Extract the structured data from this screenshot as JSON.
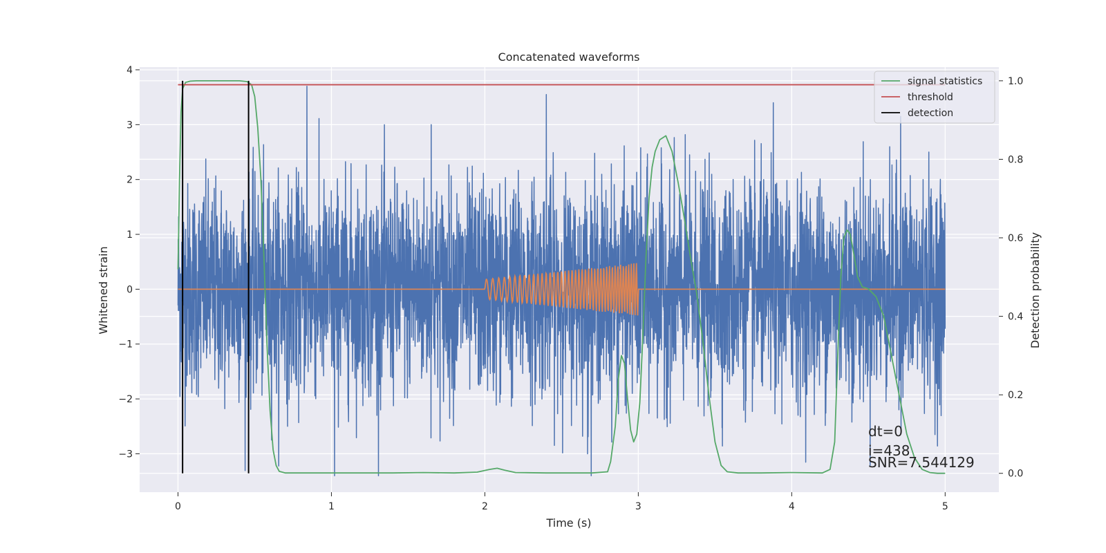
{
  "chart_data": {
    "type": "line",
    "title": "Concatenated waveforms",
    "xlabel": "Time (s)",
    "ylabel": "Whitened strain",
    "ylabel_right": "Detection probability",
    "xlim": [
      -0.25,
      5.35
    ],
    "ylim": [
      -3.7,
      4.05
    ],
    "ylim_right": [
      -0.048,
      1.035
    ],
    "xticks": [
      0,
      1,
      2,
      3,
      4,
      5
    ],
    "yticks": [
      -3,
      -2,
      -1,
      0,
      1,
      2,
      3,
      4
    ],
    "yticks_right": [
      0.0,
      0.2,
      0.4,
      0.6,
      0.8,
      1.0
    ],
    "xtick_labels": [
      "0",
      "1",
      "2",
      "3",
      "4",
      "5"
    ],
    "ytick_labels": [
      "−3",
      "−2",
      "−1",
      "0",
      "1",
      "2",
      "3",
      "4"
    ],
    "ytick_right_labels": [
      "0.0",
      "0.2",
      "0.4",
      "0.6",
      "0.8",
      "1.0"
    ],
    "grid": true,
    "legend_position": "top-right",
    "colors": {
      "background": "#eaeaf2",
      "grid": "#ffffff",
      "strain": "#4c72b0",
      "injection": "#dd8452",
      "statistics": "#55a868",
      "threshold": "#c44e52",
      "detection": "#000000"
    },
    "series": [
      {
        "name": "strain",
        "axis": "left",
        "description_values": "whitened Gaussian noise, x from 0 to 5 s, mostly within ±2.5, peaks near 3.7",
        "x_range": [
          0,
          5
        ],
        "sigma": 1.0,
        "spikes": [
          [
            0.84,
            3.7
          ],
          [
            1.02,
            -3.4
          ],
          [
            2.4,
            3.55
          ],
          [
            3.88,
            3.4
          ],
          [
            4.71,
            3.15
          ],
          [
            1.65,
            3.0
          ],
          [
            2.67,
            -3.0
          ]
        ]
      },
      {
        "name": "injection",
        "axis": "left",
        "chirp_start": 2.0,
        "chirp_end": 3.0,
        "amp_start": 0.18,
        "amp_end": 0.48,
        "cycles": 42,
        "baseline": 0,
        "x_range": [
          0,
          5
        ]
      },
      {
        "name": "signal statistics",
        "axis": "right",
        "x": [
          0.0,
          0.01,
          0.02,
          0.03,
          0.05,
          0.08,
          0.12,
          0.2,
          0.3,
          0.4,
          0.45,
          0.48,
          0.5,
          0.52,
          0.54,
          0.56,
          0.58,
          0.6,
          0.62,
          0.64,
          0.66,
          0.7,
          0.8,
          1.0,
          1.4,
          1.6,
          1.8,
          1.95,
          2.03,
          2.08,
          2.13,
          2.2,
          2.4,
          2.7,
          2.8,
          2.82,
          2.85,
          2.87,
          2.89,
          2.91,
          2.93,
          2.95,
          2.97,
          2.99,
          3.01,
          3.03,
          3.05,
          3.07,
          3.09,
          3.11,
          3.14,
          3.18,
          3.22,
          3.26,
          3.3,
          3.34,
          3.38,
          3.42,
          3.46,
          3.5,
          3.54,
          3.58,
          3.65,
          3.8,
          4.0,
          4.2,
          4.25,
          4.28,
          4.3,
          4.32,
          4.34,
          4.36,
          4.38,
          4.4,
          4.43,
          4.46,
          4.5,
          4.55,
          4.6,
          4.65,
          4.7,
          4.75,
          4.8,
          4.85,
          4.9,
          4.95,
          5.0
        ],
        "y": [
          0.52,
          0.75,
          0.92,
          0.98,
          0.996,
          0.999,
          1.0,
          1.0,
          1.0,
          1.0,
          0.998,
          0.99,
          0.96,
          0.88,
          0.75,
          0.55,
          0.33,
          0.16,
          0.06,
          0.02,
          0.005,
          0.001,
          0.001,
          0.001,
          0.001,
          0.002,
          0.001,
          0.003,
          0.01,
          0.013,
          0.008,
          0.002,
          0.001,
          0.001,
          0.004,
          0.03,
          0.12,
          0.24,
          0.3,
          0.28,
          0.19,
          0.11,
          0.08,
          0.1,
          0.18,
          0.35,
          0.55,
          0.7,
          0.78,
          0.82,
          0.85,
          0.86,
          0.82,
          0.74,
          0.65,
          0.55,
          0.46,
          0.34,
          0.2,
          0.08,
          0.02,
          0.004,
          0.001,
          0.001,
          0.002,
          0.001,
          0.01,
          0.08,
          0.3,
          0.5,
          0.6,
          0.62,
          0.61,
          0.57,
          0.5,
          0.475,
          0.47,
          0.45,
          0.4,
          0.3,
          0.2,
          0.1,
          0.04,
          0.01,
          0.002,
          0.0,
          0.0
        ]
      },
      {
        "name": "threshold",
        "axis": "right",
        "x": [
          0,
          5
        ],
        "y": [
          0.99,
          0.99
        ]
      },
      {
        "name": "detection",
        "axis": "right",
        "x": [
          0.03,
          0.46
        ],
        "ymin": 0.0,
        "ymax": 1.0
      }
    ],
    "legend": [
      "signal statistics",
      "threshold",
      "detection"
    ],
    "annotations": [
      "dt=0",
      "i=438",
      "SNR=7.544129"
    ]
  }
}
